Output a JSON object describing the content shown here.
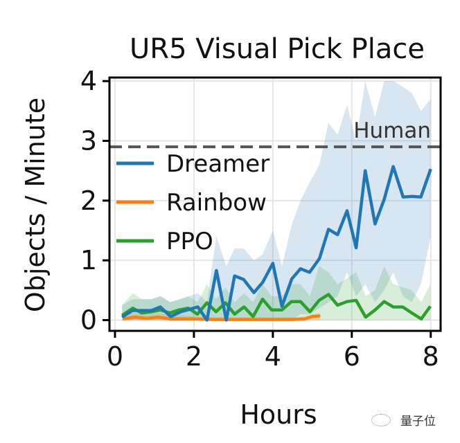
{
  "chart_data": {
    "type": "line",
    "title": "UR5 Visual Pick Place",
    "xlabel": "Hours",
    "ylabel": "Objects / Minute",
    "xlim": [
      -0.14,
      8.25
    ],
    "ylim": [
      -0.18,
      4.06
    ],
    "xticks": [
      0,
      2,
      4,
      6,
      8
    ],
    "yticks": [
      0,
      1,
      2,
      3,
      4
    ],
    "grid": true,
    "legend_position": "center-left",
    "reference_line": {
      "label": "Human",
      "y": 2.9,
      "color": "#555555",
      "style": "dashed"
    },
    "series": [
      {
        "name": "Dreamer",
        "color": "#1f77b4",
        "x": [
          0.18,
          0.44,
          0.92,
          1.15,
          1.41,
          1.67,
          2.1,
          2.33,
          2.57,
          2.82,
          3.03,
          3.26,
          3.52,
          3.74,
          4.0,
          4.23,
          4.48,
          4.7,
          4.93,
          5.18,
          5.41,
          5.64,
          5.88,
          6.11,
          6.34,
          6.59,
          6.82,
          7.05,
          7.3,
          7.52,
          7.75,
          8.0
        ],
        "y": [
          0.05,
          0.16,
          0.16,
          0.22,
          0.06,
          0.14,
          0.22,
          0.0,
          0.83,
          0.0,
          0.74,
          0.68,
          0.46,
          0.63,
          0.95,
          0.23,
          0.69,
          0.86,
          0.8,
          1.03,
          1.52,
          1.43,
          1.83,
          1.21,
          2.5,
          1.61,
          2.02,
          2.57,
          2.06,
          2.07,
          2.06,
          2.53
        ],
        "lower": [
          0,
          0,
          0,
          0,
          0,
          0,
          0,
          0,
          0,
          0,
          0,
          0,
          0,
          0,
          0,
          0,
          0,
          0.1,
          0.1,
          0.2,
          0.3,
          0.4,
          0.8,
          0.4,
          0.6,
          0.3,
          0.5,
          0.8,
          0.4,
          0.3,
          0.6,
          1.4
        ],
        "upper": [
          0.25,
          0.35,
          0.35,
          0.4,
          0.3,
          0.35,
          0.45,
          0.3,
          1.4,
          0.9,
          1.2,
          1.2,
          1.0,
          1.1,
          1.5,
          0.9,
          1.6,
          2.0,
          2.3,
          2.6,
          3.3,
          3.1,
          3.6,
          3.0,
          4.0,
          3.4,
          4.0,
          4.0,
          3.9,
          3.8,
          3.5,
          3.7
        ]
      },
      {
        "name": "Rainbow",
        "color": "#ff7f0e",
        "x": [
          0.2,
          0.5,
          0.8,
          1.1,
          1.4,
          1.7,
          2.0,
          2.5,
          3.0,
          3.5,
          4.0,
          4.5,
          4.8,
          5.0,
          5.2
        ],
        "y": [
          0.02,
          0.05,
          0.03,
          0.05,
          0.02,
          0.02,
          0.02,
          0.01,
          0.01,
          0.01,
          0.01,
          0.01,
          0.02,
          0.06,
          0.07
        ],
        "lower": [
          0,
          0,
          0,
          0,
          0,
          0,
          0,
          0,
          0,
          0,
          0,
          0,
          0,
          0,
          0
        ],
        "upper": [
          0.1,
          0.12,
          0.1,
          0.12,
          0.08,
          0.08,
          0.06,
          0.05,
          0.05,
          0.05,
          0.05,
          0.05,
          0.06,
          0.1,
          0.12
        ]
      },
      {
        "name": "PPO",
        "color": "#2ca02c",
        "x": [
          0.18,
          0.45,
          0.68,
          0.92,
          1.15,
          1.39,
          1.62,
          1.86,
          2.09,
          2.33,
          2.56,
          2.8,
          3.03,
          3.27,
          3.5,
          3.74,
          3.97,
          4.23,
          4.47,
          4.7,
          4.94,
          5.17,
          5.41,
          5.64,
          5.88,
          6.11,
          6.35,
          6.59,
          6.82,
          7.05,
          7.29,
          7.52,
          7.76,
          7.99
        ],
        "y": [
          0.08,
          0.2,
          0.12,
          0.14,
          0.17,
          0.12,
          0.17,
          0.2,
          0.1,
          0.29,
          0.14,
          0.29,
          0.1,
          0.22,
          0.06,
          0.35,
          0.17,
          0.17,
          0.31,
          0.31,
          0.14,
          0.33,
          0.43,
          0.25,
          0.31,
          0.33,
          0.05,
          0.17,
          0.31,
          0.22,
          0.22,
          0.12,
          0.02,
          0.23
        ],
        "lower": [
          0,
          0,
          0,
          0,
          0,
          0,
          0,
          0,
          0,
          0,
          0,
          0,
          0,
          0,
          0,
          0,
          0,
          0,
          0,
          0,
          0,
          0,
          0,
          0,
          0,
          0,
          0,
          0,
          0,
          0,
          0,
          0,
          0,
          0
        ],
        "upper": [
          0.25,
          0.45,
          0.35,
          0.35,
          0.4,
          0.3,
          0.35,
          0.4,
          0.3,
          0.6,
          0.35,
          0.55,
          0.3,
          0.45,
          0.3,
          0.6,
          0.4,
          0.4,
          0.6,
          0.6,
          0.4,
          0.9,
          0.8,
          0.6,
          0.7,
          0.8,
          0.4,
          0.5,
          0.9,
          0.6,
          0.55,
          0.5,
          0.3,
          0.6
        ]
      }
    ]
  },
  "watermark": "量子位"
}
